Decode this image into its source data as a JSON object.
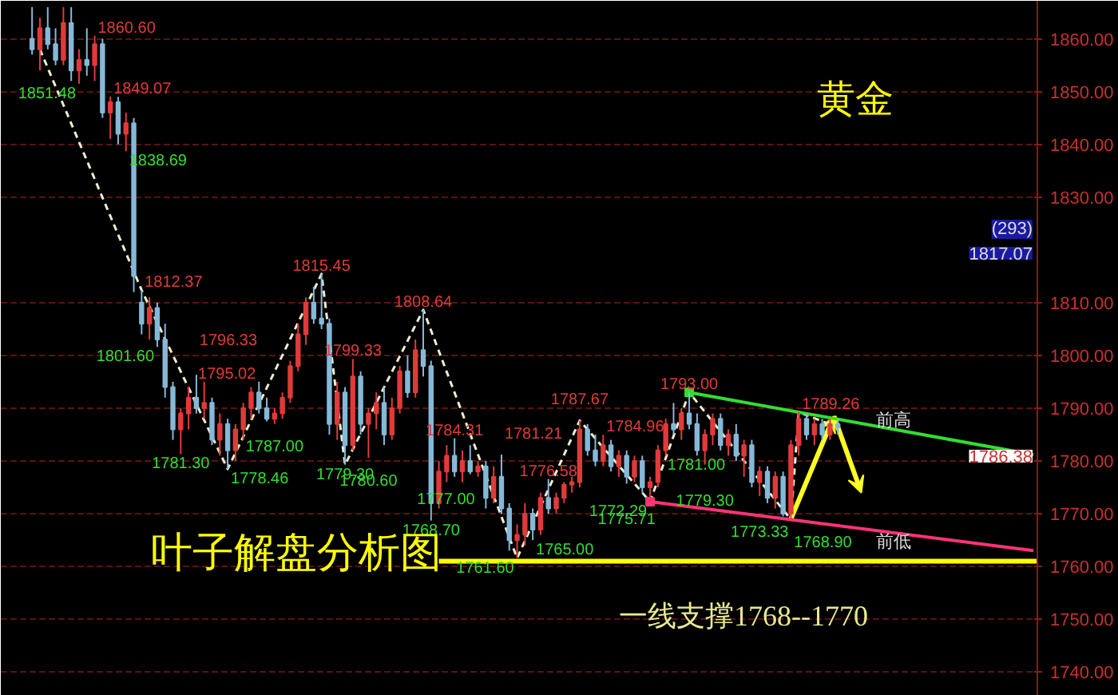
{
  "chart_data": {
    "type": "candlestick",
    "categories": [
      null,
      null,
      null,
      null,
      null,
      null,
      null,
      null,
      null,
      null,
      null,
      null,
      null,
      null,
      null,
      null,
      null,
      null,
      null,
      null,
      null,
      null,
      null,
      null,
      null,
      null,
      null,
      null,
      null,
      null,
      null,
      null,
      null,
      null,
      null,
      null,
      null,
      null,
      null,
      null,
      null,
      null,
      null,
      null,
      null,
      null,
      null,
      null,
      null,
      null,
      null,
      null,
      null,
      null,
      null,
      null,
      null,
      null,
      null,
      null,
      null,
      null,
      null,
      null,
      null,
      null,
      null,
      null,
      null,
      null,
      null,
      null,
      null,
      null,
      null,
      null,
      null,
      null,
      null,
      null,
      null,
      null,
      null,
      null,
      null,
      null,
      null,
      null,
      null,
      null,
      null,
      null,
      null,
      null,
      null,
      null,
      null,
      null,
      null,
      null,
      null,
      null,
      null,
      null,
      null,
      null,
      null,
      null,
      null,
      null,
      null,
      null,
      null,
      null,
      null,
      null,
      null,
      null,
      null,
      null,
      null,
      null,
      null,
      null,
      null,
      null,
      null,
      null,
      null
    ],
    "ohlc": [
      [
        1860,
        1866,
        1857,
        1858
      ],
      [
        1858,
        1864,
        1854,
        1862
      ],
      [
        1862,
        1866,
        1858,
        1859
      ],
      [
        1859,
        1862,
        1855,
        1856
      ],
      [
        1856,
        1866,
        1855,
        1863
      ],
      [
        1863,
        1866,
        1852,
        1854
      ],
      [
        1854,
        1858,
        1851.48,
        1856
      ],
      [
        1856,
        1862,
        1853,
        1855
      ],
      [
        1855,
        1860.6,
        1852,
        1859
      ],
      [
        1859,
        1860,
        1845,
        1846
      ],
      [
        1846,
        1849.07,
        1841,
        1848
      ],
      [
        1848,
        1849,
        1840,
        1842
      ],
      [
        1842,
        1846,
        1838.69,
        1844
      ],
      [
        1844,
        1845,
        1812,
        1815
      ],
      [
        1810,
        1812.37,
        1804,
        1806
      ],
      [
        1806,
        1811,
        1803,
        1809
      ],
      [
        1809,
        1810,
        1801.6,
        1803
      ],
      [
        1803,
        1806,
        1792,
        1794
      ],
      [
        1794,
        1795,
        1784,
        1786
      ],
      [
        1786,
        1790,
        1781.3,
        1789
      ],
      [
        1789,
        1794,
        1786,
        1792
      ],
      [
        1792,
        1796.33,
        1789,
        1790
      ],
      [
        1790,
        1795,
        1788,
        1791
      ],
      [
        1791,
        1792,
        1783,
        1784
      ],
      [
        1784,
        1789,
        1781,
        1787
      ],
      [
        1787,
        1788,
        1778.46,
        1782
      ],
      [
        1782,
        1787,
        1780,
        1786
      ],
      [
        1786,
        1791,
        1784,
        1790
      ],
      [
        1790,
        1794,
        1788,
        1793
      ],
      [
        1793,
        1795.02,
        1789,
        1790
      ],
      [
        1790,
        1792,
        1787.5,
        1788
      ],
      [
        1788,
        1790,
        1787.0,
        1789
      ],
      [
        1789,
        1793,
        1788,
        1792
      ],
      [
        1792,
        1799,
        1791,
        1798
      ],
      [
        1798,
        1806,
        1797,
        1804
      ],
      [
        1804,
        1811,
        1802,
        1810
      ],
      [
        1810,
        1813,
        1806,
        1807
      ],
      [
        1807,
        1815.45,
        1805,
        1806
      ],
      [
        1806,
        1807,
        1785,
        1787
      ],
      [
        1787,
        1795,
        1784,
        1793
      ],
      [
        1793,
        1794,
        1779.3,
        1783
      ],
      [
        1783,
        1799.33,
        1782,
        1796
      ],
      [
        1796,
        1797,
        1785,
        1787
      ],
      [
        1787,
        1790,
        1780.6,
        1789
      ],
      [
        1789,
        1793,
        1786,
        1791
      ],
      [
        1791,
        1794,
        1783,
        1785
      ],
      [
        1785,
        1792,
        1784,
        1790
      ],
      [
        1790,
        1798,
        1789,
        1797
      ],
      [
        1797,
        1800,
        1792,
        1793
      ],
      [
        1793,
        1803,
        1792,
        1801
      ],
      [
        1801,
        1808.64,
        1796,
        1798
      ],
      [
        1798,
        1799,
        1768.7,
        1772
      ],
      [
        1772,
        1780,
        1771,
        1778
      ],
      [
        1778,
        1783,
        1776,
        1781
      ],
      [
        1781,
        1784.31,
        1777,
        1778
      ],
      [
        1778,
        1782,
        1776,
        1780
      ],
      [
        1780,
        1783,
        1777.5,
        1778
      ],
      [
        1778,
        1780,
        1777.0,
        1779
      ],
      [
        1779,
        1780,
        1771,
        1773
      ],
      [
        1773,
        1779,
        1772,
        1777
      ],
      [
        1777,
        1781.21,
        1770,
        1771
      ],
      [
        1771,
        1772,
        1763,
        1765
      ],
      [
        1765,
        1768,
        1761.6,
        1766
      ],
      [
        1766,
        1772,
        1764,
        1770
      ],
      [
        1770,
        1771,
        1765.0,
        1767
      ],
      [
        1767,
        1774,
        1766,
        1773
      ],
      [
        1773,
        1776.58,
        1770,
        1771
      ],
      [
        1771,
        1774,
        1770,
        1773
      ],
      [
        1773,
        1776,
        1772,
        1775.5
      ],
      [
        1775.5,
        1777,
        1774,
        1776
      ],
      [
        1776,
        1787.67,
        1775,
        1786
      ],
      [
        1786,
        1787,
        1781,
        1782
      ],
      [
        1782,
        1785,
        1779,
        1780
      ],
      [
        1780,
        1784.96,
        1779,
        1783
      ],
      [
        1783,
        1784,
        1778,
        1779
      ],
      [
        1779,
        1782,
        1777,
        1781
      ],
      [
        1781,
        1782,
        1775.71,
        1777
      ],
      [
        1777,
        1781,
        1776,
        1780
      ],
      [
        1780,
        1781,
        1774,
        1775
      ],
      [
        1775,
        1777,
        1772.29,
        1776
      ],
      [
        1776,
        1783,
        1775,
        1782
      ],
      [
        1782,
        1788,
        1781,
        1787
      ],
      [
        1787,
        1791,
        1785,
        1786
      ],
      [
        1786,
        1790,
        1784,
        1789
      ],
      [
        1789,
        1793.0,
        1786,
        1787
      ],
      [
        1787,
        1789,
        1781,
        1782
      ],
      [
        1782,
        1786,
        1779.3,
        1785
      ],
      [
        1785,
        1789,
        1783,
        1788
      ],
      [
        1788,
        1789,
        1782,
        1783
      ],
      [
        1783,
        1786,
        1781.0,
        1785
      ],
      [
        1785,
        1787,
        1780,
        1781
      ],
      [
        1781,
        1784,
        1777,
        1783
      ],
      [
        1783,
        1784,
        1775,
        1776
      ],
      [
        1776,
        1779,
        1773.33,
        1778
      ],
      [
        1778,
        1779,
        1772,
        1773
      ],
      [
        1773,
        1778,
        1771,
        1777
      ],
      [
        1777,
        1778,
        1769.5,
        1770
      ],
      [
        1770,
        1784,
        1768.9,
        1783
      ],
      [
        1783,
        1789.26,
        1781,
        1788
      ],
      [
        1788,
        1789,
        1784,
        1785
      ],
      [
        1785,
        1788,
        1783,
        1787
      ],
      [
        1787,
        1788,
        1784,
        1785
      ],
      [
        1785,
        1788,
        1784,
        1787
      ],
      [
        1787,
        1788,
        1785,
        1786.38
      ],
      null,
      null,
      null,
      null,
      null,
      null,
      null,
      null,
      null,
      null,
      null,
      null,
      null,
      null,
      null,
      null,
      null,
      null,
      null,
      null,
      null,
      null,
      null,
      null,
      null
    ],
    "series": [
      {
        "type": "line",
        "color": "#eeeed0",
        "line_style": "dashed",
        "values": [
          null,
          1858,
          null,
          null,
          null,
          null,
          null,
          null,
          null,
          null,
          null,
          null,
          null,
          null,
          1812.37,
          null,
          null,
          null,
          null,
          null,
          null,
          null,
          null,
          null,
          null,
          1778.46,
          null,
          null,
          null,
          null,
          null,
          null,
          null,
          null,
          null,
          null,
          null,
          1815.45,
          null,
          null,
          1779.3,
          null,
          null,
          null,
          null,
          null,
          null,
          null,
          null,
          null,
          1808.64,
          null,
          null,
          null,
          null,
          null,
          null,
          null,
          null,
          null,
          null,
          null,
          1761.6,
          null,
          null,
          null,
          null,
          null,
          null,
          null,
          1787.67,
          null,
          null,
          null,
          null,
          null,
          null,
          null,
          null,
          1772.29,
          null,
          null,
          null,
          null,
          1793.0,
          null,
          null,
          null,
          null,
          null,
          null,
          null,
          null,
          null,
          null,
          null,
          null,
          1768.9,
          1789.26,
          null,
          null,
          null,
          null,
          1786.38,
          null,
          null,
          null,
          null,
          null,
          null,
          null,
          null,
          null,
          null,
          null,
          null,
          null,
          null,
          null,
          null,
          null,
          null,
          null,
          null,
          null,
          null,
          null,
          null,
          null
        ]
      },
      {
        "type": "line",
        "color": "#33dd33",
        "line_style": "solid",
        "values": [
          null,
          null,
          null,
          null,
          null,
          null,
          null,
          null,
          null,
          null,
          null,
          null,
          null,
          null,
          null,
          null,
          null,
          null,
          null,
          null,
          null,
          null,
          null,
          null,
          null,
          null,
          null,
          null,
          null,
          null,
          null,
          null,
          null,
          null,
          null,
          null,
          null,
          null,
          null,
          null,
          null,
          null,
          null,
          null,
          null,
          null,
          null,
          null,
          null,
          null,
          null,
          null,
          null,
          null,
          null,
          null,
          null,
          null,
          null,
          null,
          null,
          null,
          null,
          null,
          null,
          null,
          null,
          null,
          null,
          null,
          null,
          null,
          null,
          null,
          null,
          null,
          null,
          null,
          null,
          null,
          null,
          null,
          null,
          null,
          1793.0,
          null,
          null,
          null,
          null,
          null,
          null,
          null,
          null,
          null,
          null,
          null,
          null,
          null,
          null,
          null,
          null,
          null,
          null,
          null,
          null,
          null,
          null,
          null,
          null,
          null,
          null,
          null,
          null,
          null,
          null,
          null,
          null,
          null,
          null,
          null,
          null,
          null,
          null,
          null,
          null,
          null,
          null,
          null,
          1781.2
        ]
      },
      {
        "type": "line",
        "color": "#ff3377",
        "line_style": "solid",
        "values": [
          null,
          null,
          null,
          null,
          null,
          null,
          null,
          null,
          null,
          null,
          null,
          null,
          null,
          null,
          null,
          null,
          null,
          null,
          null,
          null,
          null,
          null,
          null,
          null,
          null,
          null,
          null,
          null,
          null,
          null,
          null,
          null,
          null,
          null,
          null,
          null,
          null,
          null,
          null,
          null,
          null,
          null,
          null,
          null,
          null,
          null,
          null,
          null,
          null,
          null,
          null,
          null,
          null,
          null,
          null,
          null,
          null,
          null,
          null,
          null,
          null,
          null,
          null,
          null,
          null,
          null,
          null,
          null,
          null,
          null,
          null,
          null,
          null,
          null,
          null,
          null,
          null,
          null,
          null,
          1772.29,
          null,
          null,
          null,
          null,
          null,
          null,
          null,
          null,
          null,
          null,
          null,
          null,
          null,
          null,
          null,
          null,
          null,
          null,
          null,
          null,
          null,
          null,
          null,
          null,
          null,
          null,
          null,
          null,
          null,
          null,
          null,
          null,
          null,
          null,
          null,
          null,
          null,
          null,
          null,
          null,
          null,
          null,
          null,
          null,
          null,
          null,
          null,
          null,
          1763.0
        ]
      }
    ],
    "ylim": [
      1735.5,
      1867.2
    ],
    "yticks": [
      {
        "value": 1740,
        "label": "1740.00"
      },
      {
        "value": 1750,
        "label": "1750.00"
      },
      {
        "value": 1760,
        "label": "1760.00"
      },
      {
        "value": 1770,
        "label": "1770.00"
      },
      {
        "value": 1780,
        "label": "1780.00"
      },
      {
        "value": 1790,
        "label": "1790.00"
      },
      {
        "value": 1800,
        "label": "1800.00"
      },
      {
        "value": 1810,
        "label": "1810.00"
      },
      {
        "value": 1830,
        "label": "1830.00"
      },
      {
        "value": 1840,
        "label": "1840.00"
      },
      {
        "value": 1850,
        "label": "1850.00"
      },
      {
        "value": 1860,
        "label": "1860.00"
      }
    ],
    "tick_labels": "y",
    "grid": "y",
    "ref_lines": [
      {
        "axis": "y",
        "value": 1761,
        "color": "#ffff00"
      }
    ],
    "annotations": [
      "1851.48",
      "1860.60",
      "1849.07",
      "1838.69",
      "1812.37",
      "1801.60",
      "1781.30",
      "1796.33",
      "1778.46",
      "1795.02",
      "1787.00",
      "1815.45",
      "1779.30",
      "1799.33",
      "1780.60",
      "1808.64",
      "1768.70",
      "1784.31",
      "1777.00",
      "1781.21",
      "1761.60",
      "1765.00",
      "1776.58",
      "1787.67",
      "1784.96",
      "1775.71",
      "1772.29",
      "1793.00",
      "1779.30",
      "1781.00",
      "1773.33",
      "1768.90",
      "1789.26",
      "黄金",
      "叶子解盘分析图",
      "一线支撑1768--1770",
      "前高",
      "前低",
      "(293)",
      "1817.07",
      "1786.38"
    ]
  }
}
